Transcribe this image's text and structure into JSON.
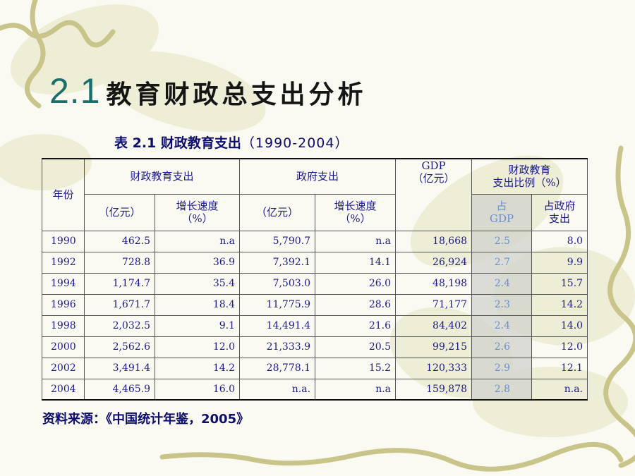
{
  "slide": {
    "title_number": "2.1",
    "title_text": "教育财政总支出分析"
  },
  "caption": {
    "prefix": "表 2.1 财政教育支出",
    "range": "（1990-2004）"
  },
  "table": {
    "header": {
      "year": "年份",
      "edu": "财政教育支出",
      "gov": "政府支出",
      "gdp": "GDP",
      "gdp_unit": "（亿元）",
      "ratio_line1": "财政教育",
      "ratio_line2": "支出比例（%）",
      "edu_amount": "（亿元）",
      "edu_growth_line1": "增长速度",
      "edu_growth_line2": "（%）",
      "gov_amount": "（亿元）",
      "gov_growth_line1": "增长速度",
      "gov_growth_line2": "（%）",
      "share_gdp_line1": "占",
      "share_gdp_line2": "GDP",
      "share_gov_line1": "占政府",
      "share_gov_line2": "支出"
    },
    "rows": [
      {
        "year": "1990",
        "edu": "462.5",
        "edu_growth": "n.a",
        "gov": "5,790.7",
        "gov_growth": "n.a",
        "gdp": "18,668",
        "share_gdp": "2.5",
        "share_gov": "8.0"
      },
      {
        "year": "1992",
        "edu": "728.8",
        "edu_growth": "36.9",
        "gov": "7,392.1",
        "gov_growth": "14.1",
        "gdp": "26,924",
        "share_gdp": "2.7",
        "share_gov": "9.9"
      },
      {
        "year": "1994",
        "edu": "1,174.7",
        "edu_growth": "35.4",
        "gov": "7,503.0",
        "gov_growth": "26.0",
        "gdp": "48,198",
        "share_gdp": "2.4",
        "share_gov": "15.7"
      },
      {
        "year": "1996",
        "edu": "1,671.7",
        "edu_growth": "18.4",
        "gov": "11,775.9",
        "gov_growth": "28.6",
        "gdp": "71,177",
        "share_gdp": "2.3",
        "share_gov": "14.2"
      },
      {
        "year": "1998",
        "edu": "2,032.5",
        "edu_growth": "9.1",
        "gov": "14,491.4",
        "gov_growth": "21.6",
        "gdp": "84,402",
        "share_gdp": "2.4",
        "share_gov": "14.0"
      },
      {
        "year": "2000",
        "edu": "2,562.6",
        "edu_growth": "12.0",
        "gov": "21,333.9",
        "gov_growth": "20.5",
        "gdp": "99,215",
        "share_gdp": "2.6",
        "share_gov": "12.0"
      },
      {
        "year": "2002",
        "edu": "3,491.4",
        "edu_growth": "14.2",
        "gov": "28,778.1",
        "gov_growth": "15.2",
        "gdp": "120,333",
        "share_gdp": "2.9",
        "share_gov": "12.1"
      },
      {
        "year": "2004",
        "edu": "4,465.9",
        "edu_growth": "16.0",
        "gov": "n.a.",
        "gov_growth": "n.a",
        "gdp": "159,878",
        "share_gdp": "2.8",
        "share_gov": "n.a."
      }
    ]
  },
  "source": "资料来源：《中国统计年鉴，2005》",
  "colors": {
    "title_number": "#1a6f6a",
    "table_text": "#1a1a8a",
    "highlight_column": "#d0d2cc",
    "highlight_text": "#6a8fd0",
    "background": "#fbfaf2"
  }
}
